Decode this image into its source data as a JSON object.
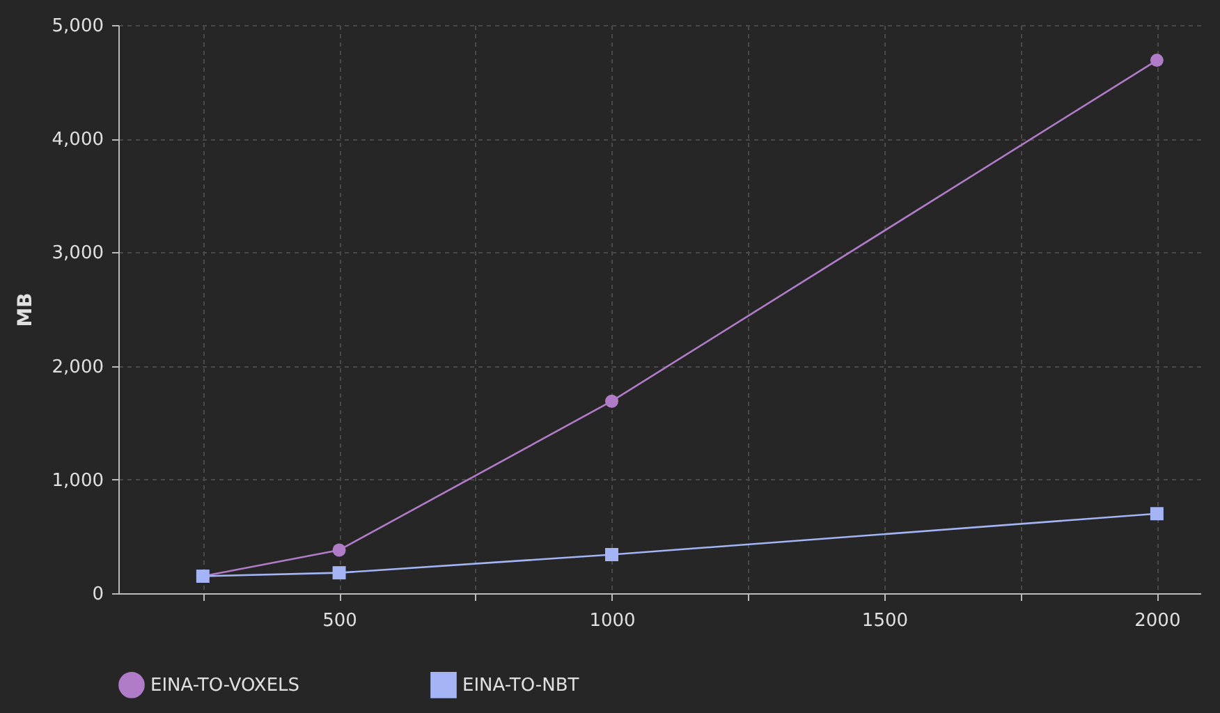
{
  "chart_data": {
    "type": "line",
    "ylabel": "MB",
    "x": [
      250,
      500,
      1000,
      2000
    ],
    "series": [
      {
        "name": "EINA-TO-VOXELS",
        "color": "#b07cc8",
        "marker": "circle",
        "values": [
          150,
          380,
          1690,
          4690
        ]
      },
      {
        "name": "EINA-TO-NBT",
        "color": "#a4b4f4",
        "marker": "square",
        "values": [
          150,
          180,
          340,
          700
        ]
      }
    ],
    "xlim": [
      95,
      2080
    ],
    "xticks": [
      {
        "value": 250,
        "label": null
      },
      500,
      {
        "value": 750,
        "label": null
      },
      1000,
      {
        "value": 1250,
        "label": null
      },
      1500,
      {
        "value": 1750,
        "label": null
      },
      2000
    ],
    "ylim": [
      0,
      5000
    ],
    "yticks": [
      {
        "value": 0,
        "label": "0"
      },
      {
        "value": 1000,
        "label": "1,000"
      },
      {
        "value": 2000,
        "label": "2,000"
      },
      {
        "value": 3000,
        "label": "3,000"
      },
      {
        "value": 4000,
        "label": "4,000"
      },
      {
        "value": 5000,
        "label": "5,000"
      }
    ],
    "grid": true,
    "legend": "bottom left"
  }
}
